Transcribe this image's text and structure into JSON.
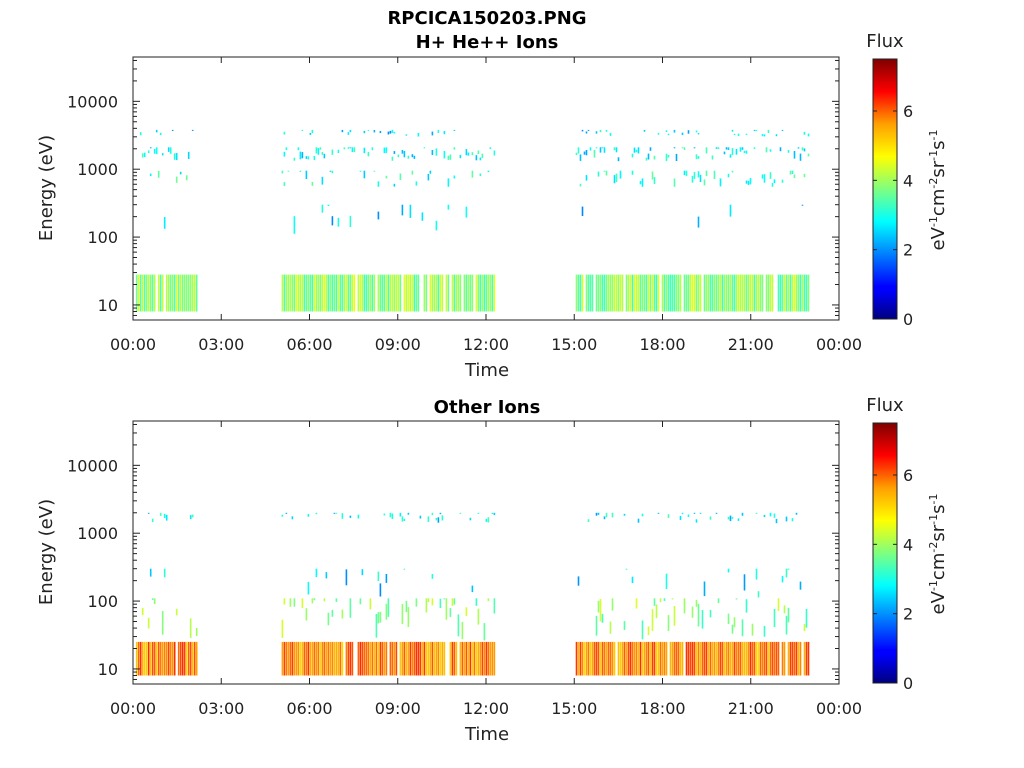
{
  "figure_title": "RPCICA150203.PNG",
  "chart_data": [
    {
      "type": "heatmap",
      "title": "H+ He++ Ions",
      "xlabel": "Time",
      "ylabel": "Energy (eV)",
      "x_ticks": [
        "00:00",
        "03:00",
        "06:00",
        "09:00",
        "12:00",
        "15:00",
        "18:00",
        "21:00",
        "00:00"
      ],
      "xlim_hours": [
        0,
        24
      ],
      "y_scale": "log",
      "y_ticks": [
        "10",
        "100",
        "1000",
        "10000"
      ],
      "ylim": [
        6,
        45000
      ],
      "colorbar": {
        "label": "Flux",
        "unit": "eV-1cm-2sr-1s-1",
        "range": [
          0,
          7.5
        ],
        "ticks": [
          "0",
          "2",
          "4",
          "6"
        ],
        "colormap": "jet"
      },
      "data_intervals_hours": [
        [
          0.1,
          2.2
        ],
        [
          5.05,
          12.3
        ],
        [
          15.05,
          22.95
        ]
      ],
      "bands": [
        {
          "e_min": 8,
          "e_max": 28,
          "flux": 3.9,
          "density": 0.9
        },
        {
          "e_min": 1300,
          "e_max": 2100,
          "flux": 2.8,
          "density": 0.45
        },
        {
          "e_min": 3000,
          "e_max": 3800,
          "flux": 2.6,
          "density": 0.25
        },
        {
          "e_min": 550,
          "e_max": 950,
          "flux": 3.0,
          "density": 0.25
        },
        {
          "e_min": 100,
          "e_max": 300,
          "flux": 2.5,
          "density": 0.06
        }
      ]
    },
    {
      "type": "heatmap",
      "title": "Other Ions",
      "xlabel": "Time",
      "ylabel": "Energy (eV)",
      "x_ticks": [
        "00:00",
        "03:00",
        "06:00",
        "09:00",
        "12:00",
        "15:00",
        "18:00",
        "21:00",
        "00:00"
      ],
      "xlim_hours": [
        0,
        24
      ],
      "y_scale": "log",
      "y_ticks": [
        "10",
        "100",
        "1000",
        "10000"
      ],
      "ylim": [
        6,
        45000
      ],
      "colorbar": {
        "label": "Flux",
        "unit": "eV-1cm-2sr-1s-1",
        "range": [
          0,
          7.5
        ],
        "ticks": [
          "0",
          "2",
          "4",
          "6"
        ],
        "colormap": "jet"
      },
      "data_intervals_hours": [
        [
          0.1,
          2.2
        ],
        [
          5.05,
          12.3
        ],
        [
          15.05,
          22.95
        ]
      ],
      "bands": [
        {
          "e_min": 8,
          "e_max": 25,
          "flux": 5.6,
          "density": 0.95
        },
        {
          "e_min": 25,
          "e_max": 110,
          "flux": 3.8,
          "density": 0.35
        },
        {
          "e_min": 1400,
          "e_max": 2000,
          "flux": 2.7,
          "density": 0.25
        },
        {
          "e_min": 110,
          "e_max": 300,
          "flux": 2.6,
          "density": 0.08
        }
      ]
    }
  ]
}
